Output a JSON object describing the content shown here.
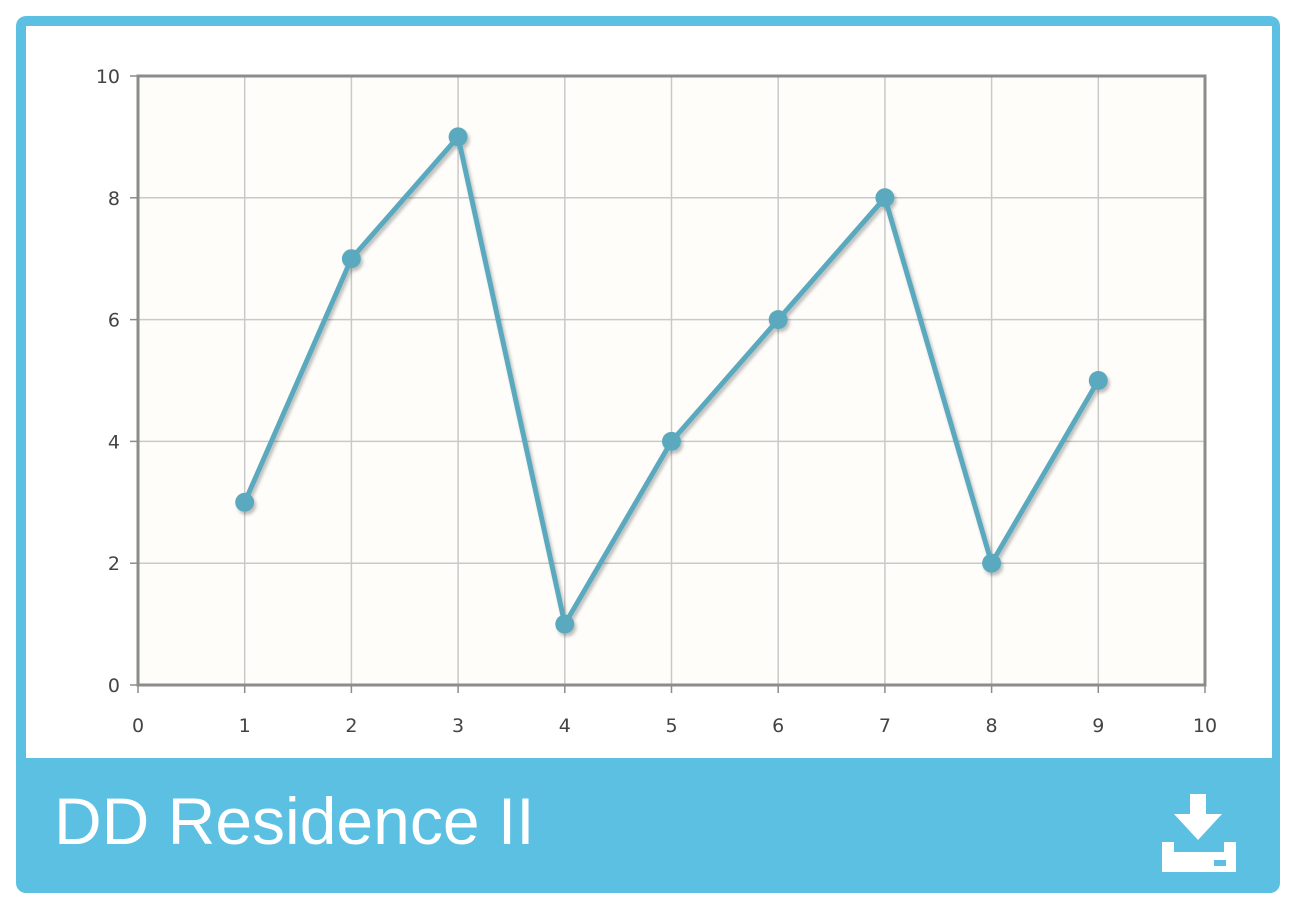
{
  "card": {
    "title": "DD Residence II",
    "download_icon": "download-icon"
  },
  "colors": {
    "frame": "#5bc0e2",
    "line": "#5aa9be",
    "plot_background": "#fefdf9",
    "grid": "#c9c9c9",
    "axis": "#8c8c8c"
  },
  "chart_data": {
    "type": "line",
    "x": [
      1,
      2,
      3,
      4,
      5,
      6,
      7,
      8,
      9
    ],
    "series": [
      {
        "values": [
          3,
          7,
          9,
          1,
          4,
          6,
          8,
          2,
          5
        ]
      }
    ],
    "xlim": [
      0,
      10
    ],
    "ylim": [
      0,
      10
    ],
    "xticks": [
      "0",
      "1",
      "2",
      "3",
      "4",
      "5",
      "6",
      "7",
      "8",
      "9",
      "10"
    ],
    "yticks": [
      "0",
      "2",
      "4",
      "6",
      "8",
      "10"
    ],
    "grid": true,
    "title": "",
    "xlabel": "",
    "ylabel": ""
  }
}
